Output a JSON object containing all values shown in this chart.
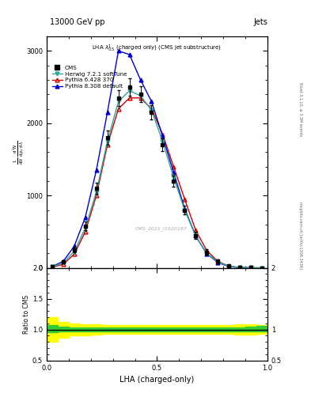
{
  "title_top": "13000 GeV pp",
  "title_right": "Jets",
  "plot_title": "LHA $\\lambda^{1}_{0.5}$ (charged only) (CMS jet substructure)",
  "xlabel": "LHA (charged-only)",
  "ylabel_ratio": "Ratio to CMS",
  "right_label_top": "Rivet 3.1.10, ≥ 3.3M events",
  "right_label_bottom": "mcplots.cern.ch [arXiv:1306.3436]",
  "watermark": "CMS_2021_I1920187",
  "lha_x": [
    0.025,
    0.075,
    0.125,
    0.175,
    0.225,
    0.275,
    0.325,
    0.375,
    0.425,
    0.475,
    0.525,
    0.575,
    0.625,
    0.675,
    0.725,
    0.775,
    0.825,
    0.875,
    0.925,
    0.975
  ],
  "cms_y": [
    20,
    80,
    250,
    580,
    1100,
    1800,
    2350,
    2500,
    2400,
    2150,
    1700,
    1200,
    800,
    450,
    220,
    90,
    30,
    10,
    3,
    1
  ],
  "cms_yerr": [
    10,
    20,
    40,
    60,
    80,
    100,
    110,
    120,
    110,
    100,
    90,
    80,
    60,
    50,
    35,
    25,
    12,
    6,
    3,
    2
  ],
  "herwig_y": [
    15,
    70,
    230,
    550,
    1050,
    1750,
    2300,
    2450,
    2380,
    2180,
    1750,
    1250,
    800,
    440,
    200,
    80,
    22,
    6,
    2,
    0
  ],
  "pythia6_y": [
    10,
    50,
    190,
    500,
    1000,
    1700,
    2200,
    2350,
    2350,
    2200,
    1850,
    1400,
    950,
    520,
    240,
    90,
    24,
    6,
    2,
    0
  ],
  "pythia8_y": [
    20,
    90,
    300,
    700,
    1350,
    2150,
    3000,
    2950,
    2600,
    2300,
    1820,
    1320,
    820,
    440,
    195,
    75,
    18,
    5,
    1,
    0
  ],
  "cms_color": "#000000",
  "herwig_color": "#2ca89e",
  "pythia6_color": "#cc0000",
  "pythia8_color": "#0000cc",
  "ylim_main": [
    0,
    3200
  ],
  "ylim_ratio": [
    0.5,
    2.0
  ],
  "xlim": [
    0.0,
    1.0
  ],
  "green_color": "#33cc33",
  "yellow_color": "#ffff00",
  "yellow_lo": [
    0.8,
    0.87,
    0.9,
    0.91,
    0.92,
    0.93,
    0.93,
    0.93,
    0.93,
    0.93,
    0.93,
    0.93,
    0.93,
    0.93,
    0.93,
    0.93,
    0.93,
    0.92,
    0.92,
    0.93
  ],
  "yellow_hi": [
    1.2,
    1.13,
    1.1,
    1.09,
    1.08,
    1.07,
    1.07,
    1.07,
    1.07,
    1.07,
    1.07,
    1.07,
    1.07,
    1.07,
    1.07,
    1.07,
    1.07,
    1.08,
    1.08,
    1.07
  ],
  "green_lo": [
    0.96,
    0.97,
    0.97,
    0.97,
    0.97,
    0.97,
    0.97,
    0.97,
    0.97,
    0.97,
    0.97,
    0.97,
    0.97,
    0.97,
    0.97,
    0.97,
    0.97,
    0.97,
    0.97,
    0.97
  ],
  "green_hi": [
    1.07,
    1.05,
    1.04,
    1.04,
    1.03,
    1.03,
    1.03,
    1.03,
    1.03,
    1.03,
    1.03,
    1.03,
    1.03,
    1.03,
    1.03,
    1.03,
    1.04,
    1.04,
    1.05,
    1.06
  ]
}
